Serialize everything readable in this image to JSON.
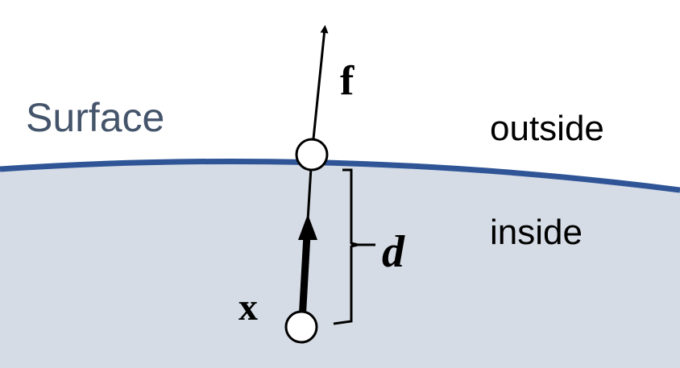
{
  "labels": {
    "surface": "Surface",
    "outside": "outside",
    "inside": "inside",
    "force": "f",
    "position": "x",
    "distance": "d"
  },
  "colors": {
    "background_outside": "#ffffff",
    "background_inside": "#d6dce5",
    "surface_line": "#2f5597",
    "surface_text": "#44546a",
    "ink": "#000000"
  }
}
